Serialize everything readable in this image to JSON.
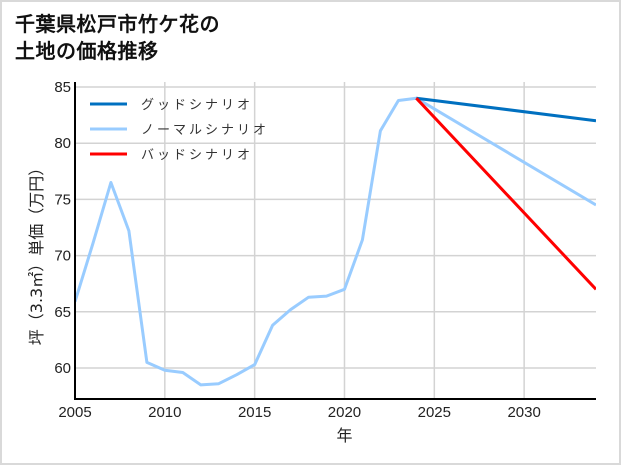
{
  "title": "千葉県松戸市竹ケ花の\n土地の価格推移",
  "chart_data": {
    "type": "line",
    "title": "千葉県松戸市竹ケ花の土地の価格推移",
    "xlabel": "年",
    "ylabel": "坪（3.3㎡）単価（万円）",
    "xlim": [
      2005,
      2034
    ],
    "ylim": [
      57.3,
      85
    ],
    "xticks": [
      2005,
      2010,
      2015,
      2020,
      2025,
      2030
    ],
    "yticks": [
      60,
      65,
      70,
      75,
      80,
      85
    ],
    "grid": true,
    "legend_position": "upper left",
    "series": [
      {
        "name": "ノーマルシナリオ",
        "color": "#99ccff",
        "x": [
          2005,
          2006,
          2007,
          2008,
          2009,
          2010,
          2011,
          2012,
          2013,
          2014,
          2015,
          2016,
          2017,
          2018,
          2019,
          2020,
          2021,
          2022,
          2023,
          2024,
          2034
        ],
        "values": [
          65.9,
          71.1,
          76.5,
          72.2,
          60.5,
          59.8,
          59.6,
          58.5,
          58.6,
          59.4,
          60.3,
          63.8,
          65.2,
          66.3,
          66.4,
          67.0,
          71.4,
          81.1,
          83.8,
          84.0,
          74.5
        ]
      },
      {
        "name": "グッドシナリオ",
        "color": "#0070c0",
        "x": [
          2024,
          2034
        ],
        "values": [
          84.0,
          82.0
        ]
      },
      {
        "name": "バッドシナリオ",
        "color": "#ff0000",
        "x": [
          2024,
          2034
        ],
        "values": [
          84.0,
          67.0
        ]
      }
    ],
    "legend": [
      "グッドシナリオ",
      "ノーマルシナリオ",
      "バッドシナリオ"
    ]
  }
}
